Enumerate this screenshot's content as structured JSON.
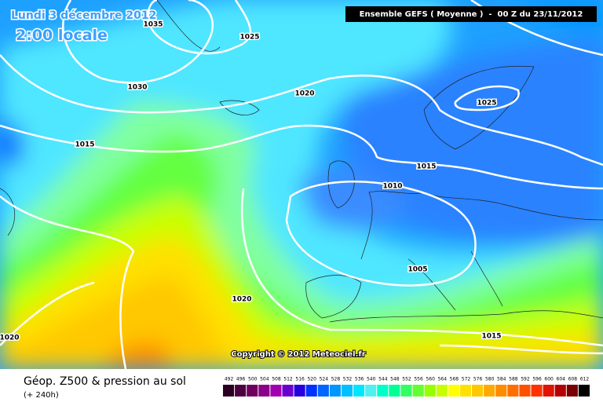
{
  "header": {
    "date": "Lundi 3 décembre 2012",
    "time": "2:00 locale",
    "model": "Ensemble GEFS ( Moyenne )  -  00 Z du 23/11/2012"
  },
  "isobar_labels": [
    "1035",
    "1025",
    "1030",
    "1020",
    "1015",
    "1010",
    "1025",
    "1015",
    "1005",
    "1020",
    "1020",
    "1015"
  ],
  "copyright": "Copyright © 2012 Meteociel.fr",
  "footer": {
    "title": "Géop. Z500 & pression au sol",
    "lead": "(+ 240h)"
  },
  "legend": {
    "values": [
      492,
      496,
      500,
      504,
      508,
      512,
      516,
      520,
      524,
      528,
      532,
      536,
      540,
      544,
      548,
      552,
      556,
      560,
      564,
      568,
      572,
      576,
      580,
      584,
      588,
      592,
      596,
      600,
      604,
      608,
      612
    ],
    "colors": [
      "#2a0020",
      "#4c0040",
      "#6e0060",
      "#8a0088",
      "#a000b0",
      "#6a00d0",
      "#2800e0",
      "#0032ff",
      "#0064ff",
      "#0096ff",
      "#00c0ff",
      "#00e6ff",
      "#50f0f0",
      "#00ffc8",
      "#00ff96",
      "#32ff64",
      "#64ff32",
      "#96ff00",
      "#c8ff00",
      "#ffff00",
      "#ffe000",
      "#ffc800",
      "#ffaa00",
      "#ff8c00",
      "#ff6e00",
      "#ff5000",
      "#ff3200",
      "#e01400",
      "#b40000",
      "#780000",
      "#000000"
    ]
  }
}
